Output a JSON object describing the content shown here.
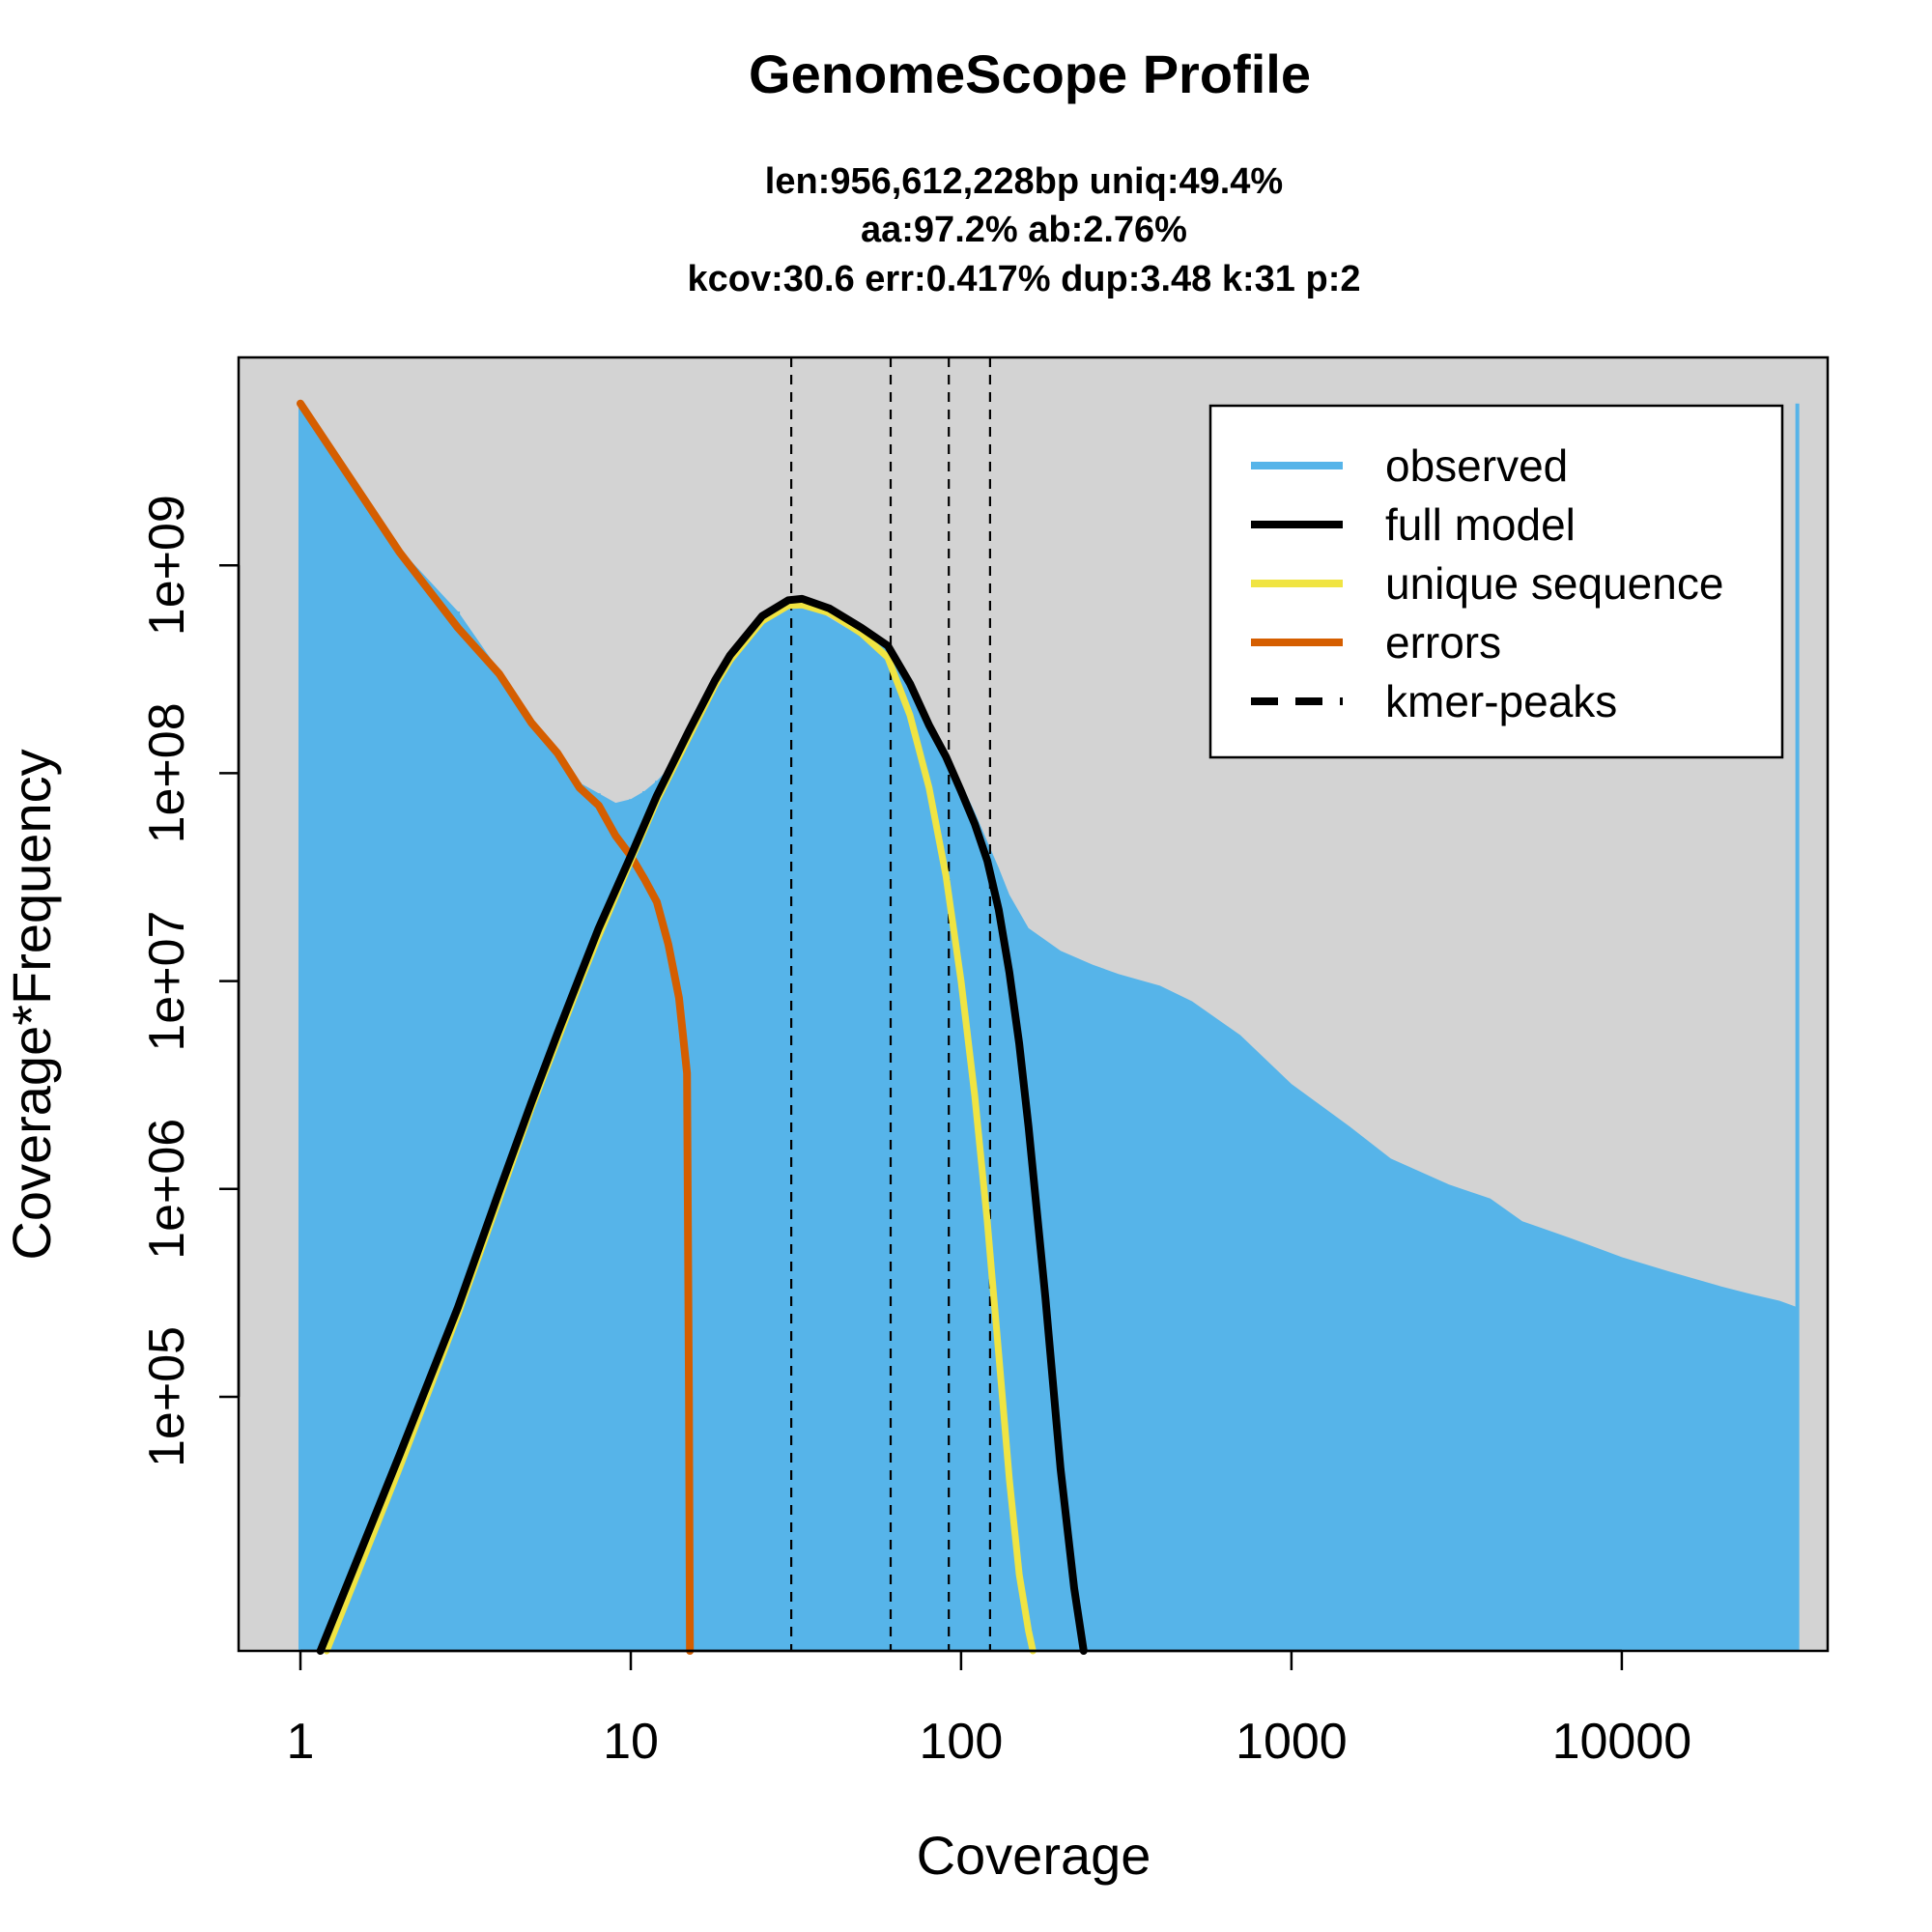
{
  "chart_data": {
    "type": "line",
    "title": "GenomeScope Profile",
    "subtitle_lines": [
      "len:956,612,228bp uniq:49.4%",
      "aa:97.2% ab:2.76%",
      "kcov:30.6 err:0.417%  dup:3.48  k:31 p:2"
    ],
    "xlabel": "Coverage",
    "ylabel": "Coverage*Frequency",
    "x_scale": "log",
    "y_scale": "log",
    "xlim": [
      0.65,
      42000
    ],
    "ylim": [
      6000,
      10000000000
    ],
    "x_ticks": [
      1,
      10,
      100,
      1000,
      10000
    ],
    "x_tick_labels": [
      "1",
      "10",
      "100",
      "1000",
      "10000"
    ],
    "y_ticks": [
      100000,
      1000000,
      10000000,
      100000000,
      1000000000
    ],
    "y_tick_labels": [
      "1e+05",
      "1e+06",
      "1e+07",
      "1e+08",
      "1e+09"
    ],
    "background": "#d3d3d3",
    "kmer_peaks": [
      30.6,
      61.2,
      91.8,
      122.4
    ],
    "legend": {
      "position": "top-right",
      "entries": [
        {
          "label": "observed",
          "color": "#56b4e9",
          "style": "solid"
        },
        {
          "label": "full model",
          "color": "#000000",
          "style": "solid"
        },
        {
          "label": "unique sequence",
          "color": "#f0e442",
          "style": "solid"
        },
        {
          "label": "errors",
          "color": "#d55e00",
          "style": "solid"
        },
        {
          "label": "kmer-peaks",
          "color": "#000000",
          "style": "dashed"
        }
      ]
    },
    "series": [
      {
        "name": "observed",
        "color": "#56b4e9",
        "style": "histogram",
        "x": [
          1,
          2,
          3,
          4,
          5,
          6,
          7,
          8,
          9,
          10,
          11,
          12,
          13,
          14,
          15,
          16,
          17,
          18,
          19,
          20,
          22,
          25,
          28,
          30,
          33,
          36,
          40,
          45,
          50,
          55,
          60,
          65,
          70,
          80,
          90,
          100,
          110,
          120,
          130,
          140,
          160,
          200,
          250,
          300,
          400,
          500,
          700,
          1000,
          1500,
          2000,
          3000,
          4000,
          5000,
          7000,
          10000,
          14000,
          20000,
          25000,
          30000,
          34000
        ],
        "y": [
          6000000000,
          1200000000,
          600000000,
          310000000,
          180000000,
          120000000,
          90000000,
          80000000,
          72000000,
          75000000,
          82000000,
          92000000,
          105000000,
          125000000,
          150000000,
          185000000,
          230000000,
          280000000,
          330000000,
          380000000,
          460000000,
          560000000,
          620000000,
          640000000,
          650000000,
          620000000,
          560000000,
          500000000,
          470000000,
          440000000,
          400000000,
          330000000,
          270000000,
          180000000,
          130000000,
          90000000,
          65000000,
          47000000,
          35000000,
          26000000,
          18000000,
          14000000,
          12000000,
          10800000,
          9500000,
          8000000,
          5500000,
          3200000,
          2000000,
          1400000,
          1050000,
          900000,
          700000,
          580000,
          470000,
          400000,
          340000,
          310000,
          290000,
          270000
        ]
      },
      {
        "name": "full model",
        "color": "#000000",
        "style": "solid",
        "x": [
          1.15,
          2,
          3,
          4,
          5,
          6,
          7,
          8,
          10,
          12,
          15,
          18,
          20,
          25,
          30,
          33,
          40,
          50,
          60,
          70,
          80,
          90,
          100,
          110,
          120,
          130,
          140,
          150,
          160,
          180,
          200,
          220,
          235
        ],
        "y": [
          6000,
          53000,
          270000,
          980000,
          2600000,
          5600000,
          10500000,
          18000000,
          40000000,
          78000000,
          160000000,
          280000000,
          370000000,
          570000000,
          680000000,
          690000000,
          620000000,
          500000000,
          410000000,
          270000000,
          170000000,
          120000000,
          82000000,
          57000000,
          38000000,
          22000000,
          11000000,
          5000000,
          2000000,
          300000,
          45000,
          12000,
          6000
        ]
      },
      {
        "name": "unique sequence",
        "color": "#f0e442",
        "style": "solid",
        "x": [
          1.2,
          2,
          3,
          4,
          5,
          6,
          7,
          8,
          10,
          12,
          15,
          18,
          20,
          25,
          30,
          33,
          40,
          50,
          60,
          70,
          80,
          90,
          100,
          110,
          120,
          130,
          140,
          150,
          160,
          165
        ],
        "y": [
          6000,
          46000,
          250000,
          900000,
          2450000,
          5200000,
          9800000,
          16500000,
          38000000,
          74000000,
          150000000,
          265000000,
          350000000,
          540000000,
          640000000,
          645000000,
          590000000,
          470000000,
          360000000,
          190000000,
          85000000,
          32000000,
          10000000,
          2800000,
          700000,
          160000,
          40000,
          14000,
          7500,
          6000
        ]
      },
      {
        "name": "errors",
        "color": "#d55e00",
        "style": "solid",
        "x": [
          1,
          2,
          3,
          4,
          5,
          6,
          7,
          8,
          9,
          10,
          11,
          12,
          13,
          14,
          14.8,
          15,
          15.1
        ],
        "y": [
          6000000000,
          1150000000,
          500000000,
          300000000,
          175000000,
          125000000,
          85000000,
          70000000,
          50000000,
          40000000,
          31000000,
          24000000,
          15000000,
          8300000,
          3600000,
          100000,
          6000
        ]
      }
    ]
  }
}
